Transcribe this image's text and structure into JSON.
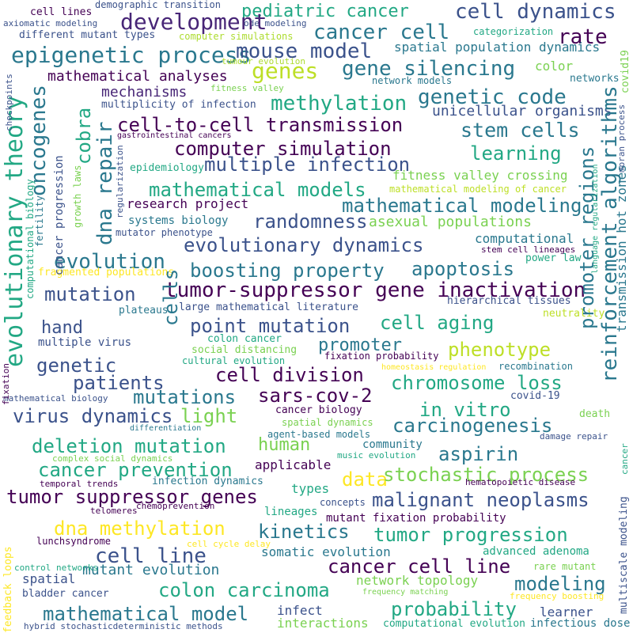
{
  "words": [
    {
      "text": "cell lines",
      "color": "#440154"
    },
    {
      "text": "demographic transition",
      "color": "#3b528b"
    },
    {
      "text": "pediatric cancer",
      "color": "#22a884"
    },
    {
      "text": "cell dynamics",
      "color": "#3b528b"
    },
    {
      "text": "axiomatic modeling",
      "color": "#3b528b"
    },
    {
      "text": "ode modeling",
      "color": "#3b528b"
    },
    {
      "text": "development",
      "color": "#482677"
    },
    {
      "text": "cancer cell",
      "color": "#2a788e"
    },
    {
      "text": "different mutant types",
      "color": "#3b528b"
    },
    {
      "text": "computer simulations",
      "color": "#addc30"
    },
    {
      "text": "categorization",
      "color": "#22a884"
    },
    {
      "text": "rate",
      "color": "#440154"
    },
    {
      "text": "epigenetic process",
      "color": "#2a788e"
    },
    {
      "text": "mouse model",
      "color": "#3b528b"
    },
    {
      "text": "spatial population dynamics",
      "color": "#2a788e"
    },
    {
      "text": "genes",
      "color": "#bddf26"
    },
    {
      "text": "gene silencing",
      "color": "#2a788e"
    },
    {
      "text": "tumour evolution",
      "color": "#addc30"
    },
    {
      "text": "color",
      "color": "#7ad151"
    },
    {
      "text": "mathematical analyses",
      "color": "#440154"
    },
    {
      "text": "network models",
      "color": "#2a788e"
    },
    {
      "text": "networks",
      "color": "#2a788e"
    },
    {
      "text": "mechanisms",
      "color": "#482677"
    },
    {
      "text": "fitness valley",
      "color": "#7ad151"
    },
    {
      "text": "methylation",
      "color": "#22a884"
    },
    {
      "text": "genetic code",
      "color": "#2a788e"
    },
    {
      "text": "multiplicity of infection",
      "color": "#3b528b"
    },
    {
      "text": "unicellular organisms",
      "color": "#3b528b"
    },
    {
      "text": "cell-to-cell transmission",
      "color": "#440154"
    },
    {
      "text": "stem cells",
      "color": "#2a788e"
    },
    {
      "text": "gastrointestinal cancers",
      "color": "#440154"
    },
    {
      "text": "computer simulation",
      "color": "#440154"
    },
    {
      "text": "learning",
      "color": "#22a884"
    },
    {
      "text": "multiple infection",
      "color": "#3b528b"
    },
    {
      "text": "epidemiology",
      "color": "#22a884"
    },
    {
      "text": "fitness valley crossing",
      "color": "#7ad151"
    },
    {
      "text": "mathematical modeling of cancer",
      "color": "#bddf26"
    },
    {
      "text": "mathematical models",
      "color": "#22a884"
    },
    {
      "text": "mathematical modeling",
      "color": "#2a788e"
    },
    {
      "text": "research project",
      "color": "#440154"
    },
    {
      "text": "randomness",
      "color": "#3b528b"
    },
    {
      "text": "asexual populations",
      "color": "#7ad151"
    },
    {
      "text": "systems biology",
      "color": "#2a788e"
    },
    {
      "text": "mutator phenotype",
      "color": "#3b528b"
    },
    {
      "text": "computational",
      "color": "#2a788e"
    },
    {
      "text": "evolutionary dynamics",
      "color": "#3b528b"
    },
    {
      "text": "stem cell lineages",
      "color": "#440154"
    },
    {
      "text": "evolution",
      "color": "#2a788e"
    },
    {
      "text": "power law",
      "color": "#22a884"
    },
    {
      "text": "boosting property",
      "color": "#2a788e"
    },
    {
      "text": "apoptosis",
      "color": "#2a788e"
    },
    {
      "text": "fragmented populations",
      "color": "#fde725"
    },
    {
      "text": "mutation",
      "color": "#3b528b"
    },
    {
      "text": "tumor-suppressor gene inactivation",
      "color": "#440154"
    },
    {
      "text": "plateaus",
      "color": "#2a788e"
    },
    {
      "text": "large mathematical literature",
      "color": "#3b528b"
    },
    {
      "text": "hierarchical tissues",
      "color": "#3b528b"
    },
    {
      "text": "hand",
      "color": "#3b528b"
    },
    {
      "text": "point mutation",
      "color": "#3b528b"
    },
    {
      "text": "cell aging",
      "color": "#22a884"
    },
    {
      "text": "neutrality",
      "color": "#bddf26"
    },
    {
      "text": "multiple virus",
      "color": "#3b528b"
    },
    {
      "text": "colon cancer",
      "color": "#22a884"
    },
    {
      "text": "promoter",
      "color": "#2a788e"
    },
    {
      "text": "phenotype",
      "color": "#bddf26"
    },
    {
      "text": "social distancing",
      "color": "#7ad151"
    },
    {
      "text": "fixation probability",
      "color": "#440154"
    },
    {
      "text": "cultural evolution",
      "color": "#22a884"
    },
    {
      "text": "homeostasis regulation",
      "color": "#fde725"
    },
    {
      "text": "recombination",
      "color": "#2a788e"
    },
    {
      "text": "genetic",
      "color": "#3b528b"
    },
    {
      "text": "patients",
      "color": "#3b528b"
    },
    {
      "text": "cell division",
      "color": "#440154"
    },
    {
      "text": "chromosome loss",
      "color": "#22a884"
    },
    {
      "text": "mathematical biology",
      "color": "#3b528b"
    },
    {
      "text": "mutations",
      "color": "#2a788e"
    },
    {
      "text": "sars-cov-2",
      "color": "#440154"
    },
    {
      "text": "covid-19",
      "color": "#3b528b"
    },
    {
      "text": "in vitro",
      "color": "#22a884"
    },
    {
      "text": "virus dynamics",
      "color": "#3b528b"
    },
    {
      "text": "light",
      "color": "#7ad151"
    },
    {
      "text": "cancer biology",
      "color": "#440154"
    },
    {
      "text": "spatial dynamics",
      "color": "#7ad151"
    },
    {
      "text": "carcinogenesis",
      "color": "#2a788e"
    },
    {
      "text": "death",
      "color": "#7ad151"
    },
    {
      "text": "differentiation",
      "color": "#2a788e"
    },
    {
      "text": "agent-based models",
      "color": "#2a788e"
    },
    {
      "text": "damage repair",
      "color": "#3b528b"
    },
    {
      "text": "deletion mutation",
      "color": "#22a884"
    },
    {
      "text": "human",
      "color": "#7ad151"
    },
    {
      "text": "community",
      "color": "#2a788e"
    },
    {
      "text": "aspirin",
      "color": "#2a788e"
    },
    {
      "text": "complex social dynamics",
      "color": "#7ad151"
    },
    {
      "text": "music evolution",
      "color": "#22a884"
    },
    {
      "text": "cancer prevention",
      "color": "#22a884"
    },
    {
      "text": "applicable",
      "color": "#440154"
    },
    {
      "text": "data",
      "color": "#fde725"
    },
    {
      "text": "stochastic process",
      "color": "#7ad151"
    },
    {
      "text": "temporal trends",
      "color": "#440154"
    },
    {
      "text": "infection dynamics",
      "color": "#2a788e"
    },
    {
      "text": "hematopoietic disease",
      "color": "#440154"
    },
    {
      "text": "tumor suppressor genes",
      "color": "#440154"
    },
    {
      "text": "types",
      "color": "#22a884"
    },
    {
      "text": "malignant neoplasms",
      "color": "#3b528b"
    },
    {
      "text": "chemoprevention",
      "color": "#440154"
    },
    {
      "text": "concepts",
      "color": "#3b528b"
    },
    {
      "text": "telomeres",
      "color": "#440154"
    },
    {
      "text": "lineages",
      "color": "#22a884"
    },
    {
      "text": "mutant fixation probability",
      "color": "#440154"
    },
    {
      "text": "dna methylation",
      "color": "#fde725"
    },
    {
      "text": "kinetics",
      "color": "#2a788e"
    },
    {
      "text": "tumor progression",
      "color": "#22a884"
    },
    {
      "text": "lunchsyndrome",
      "color": "#440154"
    },
    {
      "text": "cell cycle delay",
      "color": "#fde725"
    },
    {
      "text": "somatic evolution",
      "color": "#2a788e"
    },
    {
      "text": "advanced adenoma",
      "color": "#22a884"
    },
    {
      "text": "cell line",
      "color": "#3b528b"
    },
    {
      "text": "cancer cell line",
      "color": "#440154"
    },
    {
      "text": "mutant evolution",
      "color": "#2a788e"
    },
    {
      "text": "control networks",
      "color": "#22a884"
    },
    {
      "text": "rare mutant",
      "color": "#7ad151"
    },
    {
      "text": "spatial",
      "color": "#3b528b"
    },
    {
      "text": "network topology",
      "color": "#7ad151"
    },
    {
      "text": "modeling",
      "color": "#2a788e"
    },
    {
      "text": "colon carcinoma",
      "color": "#22a884"
    },
    {
      "text": "frequency matching",
      "color": "#7ad151"
    },
    {
      "text": "frequency boosting",
      "color": "#fde725"
    },
    {
      "text": "bladder cancer",
      "color": "#3b528b"
    },
    {
      "text": "probability",
      "color": "#22a884"
    },
    {
      "text": "mathematical model",
      "color": "#2a788e"
    },
    {
      "text": "infect",
      "color": "#3b528b"
    },
    {
      "text": "learner",
      "color": "#3b528b"
    },
    {
      "text": "interactions",
      "color": "#7ad151"
    },
    {
      "text": "computational evolution",
      "color": "#22a884"
    },
    {
      "text": "infectious dose",
      "color": "#2a788e"
    },
    {
      "text": "hybrid stochasticdeterministic methods",
      "color": "#3b528b"
    },
    {
      "text": "evolutionary theory",
      "color": "#22a884"
    },
    {
      "text": "oncogenes",
      "color": "#2a788e"
    },
    {
      "text": "dna repair",
      "color": "#2a788e"
    },
    {
      "text": "cobra",
      "color": "#22a884"
    },
    {
      "text": "cells",
      "color": "#2a788e"
    },
    {
      "text": "promoter regions",
      "color": "#2a788e"
    },
    {
      "text": "reinforcement algorithms",
      "color": "#2a788e"
    },
    {
      "text": "transmission hot zones",
      "color": "#2a788e"
    },
    {
      "text": "covid19",
      "color": "#7ad151"
    },
    {
      "text": "moran process",
      "color": "#3b528b"
    },
    {
      "text": "language regularization",
      "color": "#22a884"
    },
    {
      "text": "checkpoints",
      "color": "#3b528b"
    },
    {
      "text": "cancer progression",
      "color": "#3b528b"
    },
    {
      "text": "computational biology",
      "color": "#22a884"
    },
    {
      "text": "fertility",
      "color": "#2a788e"
    },
    {
      "text": "growth laws",
      "color": "#7ad151"
    },
    {
      "text": "regularization",
      "color": "#3b528b"
    },
    {
      "text": "fixation",
      "color": "#440154"
    },
    {
      "text": "feedback loops",
      "color": "#fde725"
    },
    {
      "text": "multiscale modeling",
      "color": "#3b528b"
    },
    {
      "text": "cancer",
      "color": "#22a884"
    }
  ]
}
